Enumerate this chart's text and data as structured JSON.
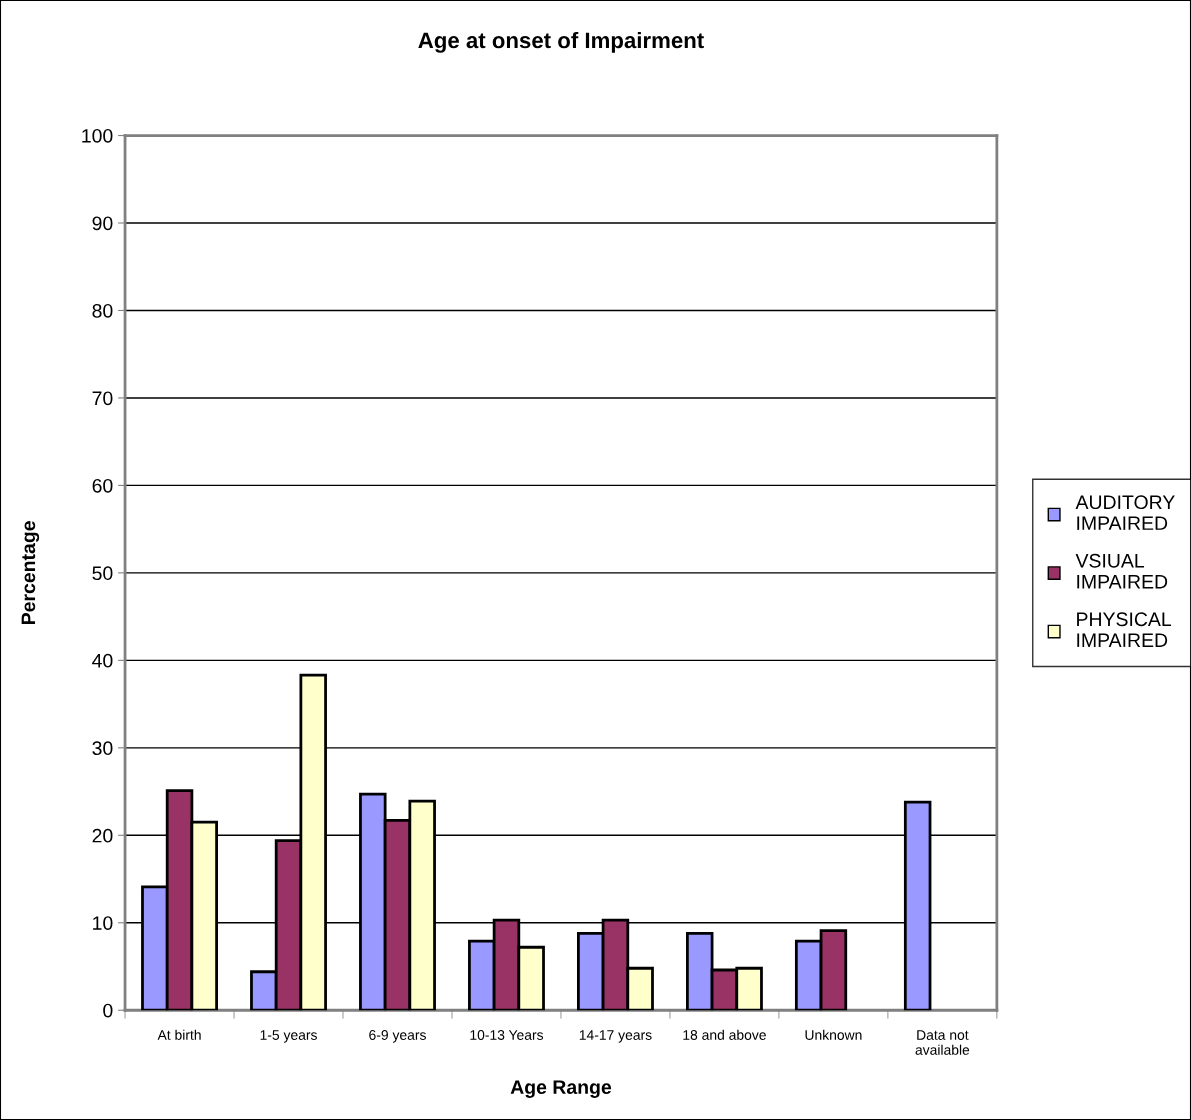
{
  "chart_data": {
    "type": "bar",
    "title": "Age at onset of Impairment",
    "xlabel": "Age Range",
    "ylabel": "Percentage",
    "categories": [
      "At birth",
      "1-5 years",
      "6-9 years",
      "10-13 Years",
      "14-17 years",
      "18 and above",
      "Unknown",
      "Data not available"
    ],
    "series": [
      {
        "name": "AUDITORY IMPAIRED",
        "color": "#9999ff",
        "values": [
          14.1,
          4.4,
          24.7,
          7.9,
          8.8,
          8.8,
          7.9,
          23.8
        ]
      },
      {
        "name": "VSIUAL IMPAIRED",
        "color": "#993366",
        "values": [
          25.1,
          19.4,
          21.7,
          10.3,
          10.3,
          4.6,
          9.1,
          null
        ]
      },
      {
        "name": "PHYSICAL IMPAIRED",
        "color": "#ffffcc",
        "values": [
          21.5,
          38.3,
          23.9,
          7.2,
          4.8,
          4.8,
          null,
          null
        ]
      }
    ],
    "ylim": [
      0,
      100
    ],
    "yticks": [
      0,
      10,
      20,
      30,
      40,
      50,
      60,
      70,
      80,
      90,
      100
    ],
    "grid": "y",
    "legend": "right"
  }
}
